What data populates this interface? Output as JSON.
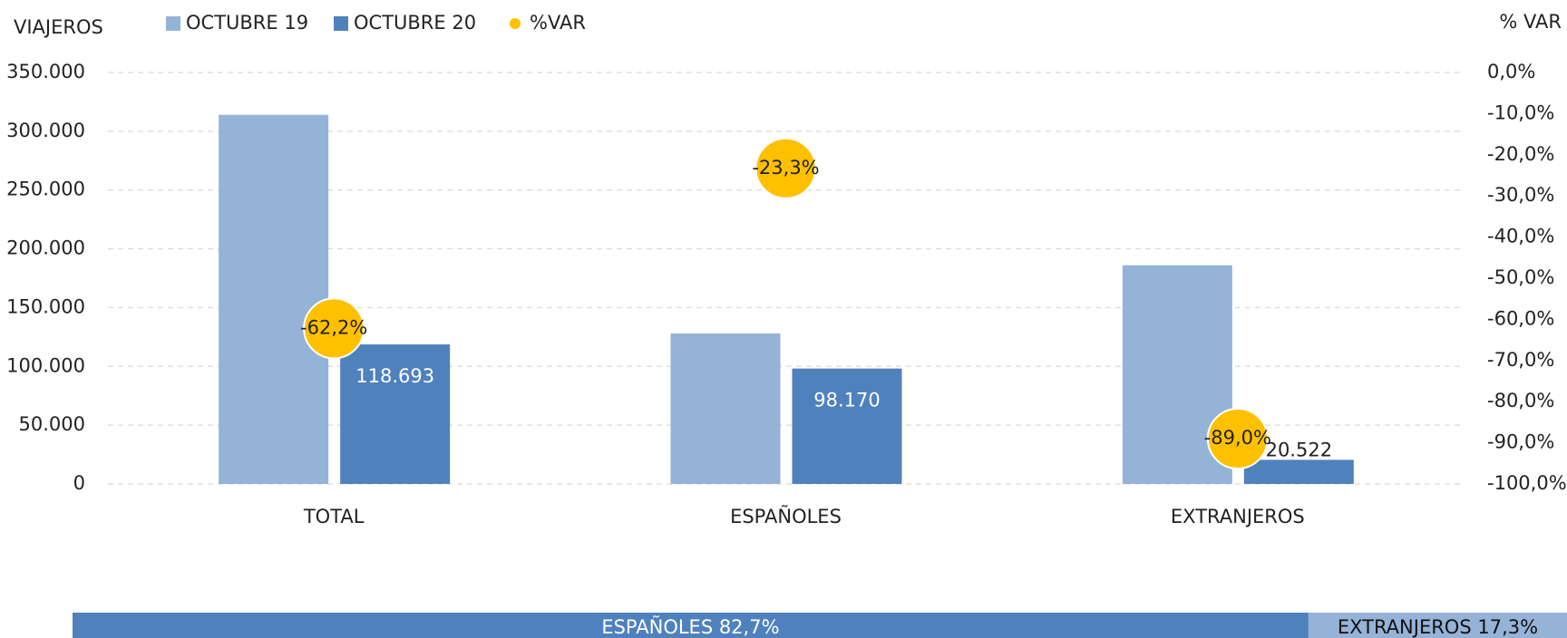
{
  "chart_data": [
    {
      "type": "bar",
      "title": "VIAJEROS",
      "y2_title": "% VAR",
      "categories": [
        "TOTAL",
        "ESPAÑOLES",
        "EXTRANJEROS"
      ],
      "series": [
        {
          "name": "OCTUBRE 19",
          "color": "#95b3d7",
          "values": [
            314000,
            128000,
            186000
          ]
        },
        {
          "name": "OCTUBRE 20",
          "color": "#4f81bd",
          "values": [
            118693,
            98170,
            20522
          ],
          "value_labels": [
            "118.693",
            "98.170",
            "20.522"
          ]
        },
        {
          "name": "%VAR",
          "color": "#ffc000",
          "axis": "y2",
          "values": [
            -62.2,
            -23.3,
            -89.0
          ],
          "value_labels": [
            "-62,2%",
            "-23,3%",
            "-89,0%"
          ]
        }
      ],
      "ylim": [
        0,
        350000
      ],
      "yticks": [
        0,
        {
          "value": 50000,
          "label": "50.000"
        },
        {
          "value": 100000,
          "label": "100.000"
        },
        {
          "value": 150000,
          "label": "150.000"
        },
        {
          "value": 200000,
          "label": "200.000"
        },
        {
          "value": 250000,
          "label": "250.000"
        },
        {
          "value": 300000,
          "label": "300.000"
        },
        {
          "value": 350000,
          "label": "350.000"
        }
      ],
      "y2lim": [
        -100,
        0
      ],
      "y2ticks": [
        {
          "value": 0,
          "label": "0,0%"
        },
        {
          "value": -10,
          "label": "-10,0%"
        },
        {
          "value": -20,
          "label": "-20,0%"
        },
        {
          "value": -30,
          "label": "-30,0%"
        },
        {
          "value": -40,
          "label": "-40,0%"
        },
        {
          "value": -50,
          "label": "-50,0%"
        },
        {
          "value": -60,
          "label": "-60,0%"
        },
        {
          "value": -70,
          "label": "-70,0%"
        },
        {
          "value": -80,
          "label": "-80,0%"
        },
        {
          "value": -90,
          "label": "-90,0%"
        },
        {
          "value": -100,
          "label": "-100,0%"
        }
      ],
      "grid": true
    },
    {
      "type": "share_bar",
      "values": [
        82.7,
        17.3
      ],
      "value_labels": [
        "ESPAÑOLES 82,7%",
        "EXTRANJEROS 17,3%"
      ],
      "colors": [
        "#4f81bd",
        "#95b3d7"
      ]
    }
  ]
}
